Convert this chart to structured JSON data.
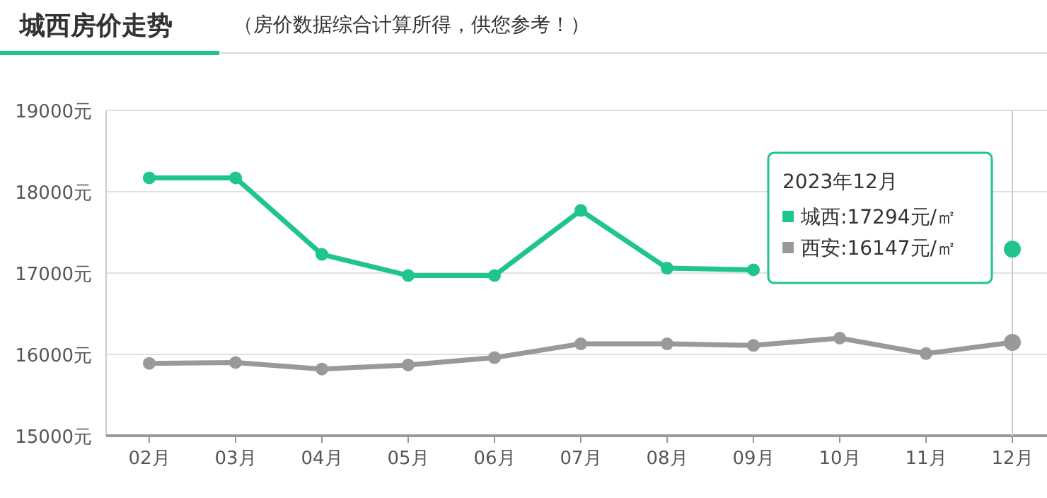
{
  "chart_data": {
    "type": "line",
    "title": "城西房价走势",
    "subtitle": "（房价数据综合计算所得，供您参考！）",
    "categories": [
      "02月",
      "03月",
      "04月",
      "05月",
      "06月",
      "07月",
      "08月",
      "09月",
      "10月",
      "11月",
      "12月"
    ],
    "series": [
      {
        "name": "城西:17294元/㎡",
        "color": "#1fc48f",
        "values": [
          18170,
          18170,
          17230,
          16970,
          16970,
          17770,
          17060,
          17040,
          null,
          null,
          17294
        ]
      },
      {
        "name": "西安:16147元/㎡",
        "color": "#999999",
        "values": [
          15890,
          15900,
          15820,
          15870,
          15960,
          16130,
          16130,
          16110,
          16200,
          16010,
          16147
        ]
      }
    ],
    "ylim": [
      15000,
      19000
    ],
    "yticks": [
      {
        "value": 15000,
        "label": "15000元"
      },
      {
        "value": 16000,
        "label": "16000元"
      },
      {
        "value": 17000,
        "label": "17000元"
      },
      {
        "value": 18000,
        "label": "18000元"
      },
      {
        "value": 19000,
        "label": "19000元"
      }
    ],
    "grid": "y",
    "marker": "circle",
    "line_style": "solid",
    "legend": "top right",
    "ref_lines": [
      {
        "axis": "x",
        "value": "12月",
        "color": "#cccccc"
      }
    ],
    "legend_title": "2023年12月"
  }
}
